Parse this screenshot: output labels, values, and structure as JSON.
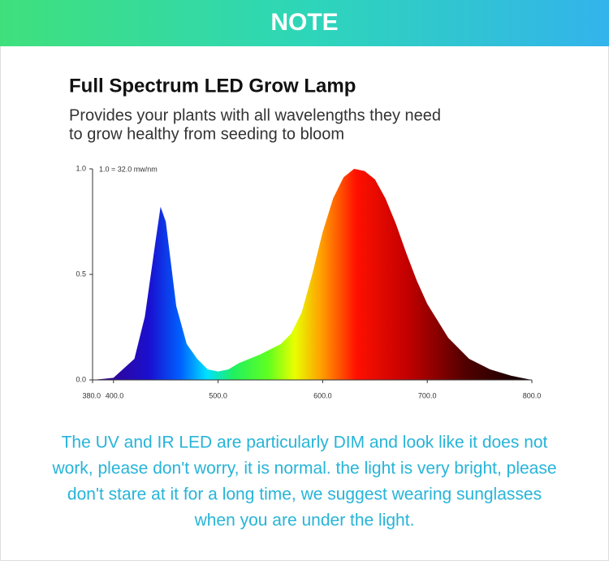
{
  "header": {
    "title": "NOTE"
  },
  "chart_data": {
    "type": "area",
    "title": "Full Spectrum LED Grow Lamp",
    "subtitle_lines": [
      "Provides your plants with all wavelengths they need",
      "to grow healthy from seeding to bloom"
    ],
    "annotation": "1.0 = 32.0 mw/nm",
    "x": [
      380,
      400,
      420,
      430,
      440,
      445,
      450,
      455,
      460,
      470,
      480,
      490,
      500,
      510,
      520,
      540,
      560,
      570,
      580,
      590,
      600,
      610,
      620,
      630,
      640,
      650,
      660,
      670,
      680,
      690,
      700,
      720,
      740,
      760,
      780,
      800
    ],
    "values": [
      0,
      0.01,
      0.1,
      0.3,
      0.65,
      0.82,
      0.75,
      0.55,
      0.35,
      0.17,
      0.1,
      0.05,
      0.04,
      0.05,
      0.08,
      0.12,
      0.17,
      0.22,
      0.32,
      0.5,
      0.7,
      0.86,
      0.96,
      1.0,
      0.99,
      0.95,
      0.86,
      0.74,
      0.6,
      0.47,
      0.36,
      0.2,
      0.1,
      0.05,
      0.02,
      0.0
    ],
    "xlim": [
      380,
      800
    ],
    "ylim": [
      0,
      1
    ],
    "xticks": [
      {
        "value": 380,
        "label": "380.0"
      },
      {
        "value": 400,
        "label": "400.0"
      },
      {
        "value": 500,
        "label": "500.0"
      },
      {
        "value": 600,
        "label": "600.0"
      },
      {
        "value": 700,
        "label": "700.0"
      },
      {
        "value": 800,
        "label": "800.0"
      }
    ],
    "yticks": [
      {
        "value": 0,
        "label": "0.0"
      },
      {
        "value": 0.5,
        "label": "0.5"
      },
      {
        "value": 1,
        "label": "1.0"
      }
    ]
  },
  "note": {
    "lines": [
      "The UV and IR LED are particularly DIM and look like it does not",
      "work, please don't worry, it is normal. the light is very bright, please",
      "don't stare at it for a long time, we suggest wearing sunglasses",
      "when you are under the light."
    ]
  }
}
